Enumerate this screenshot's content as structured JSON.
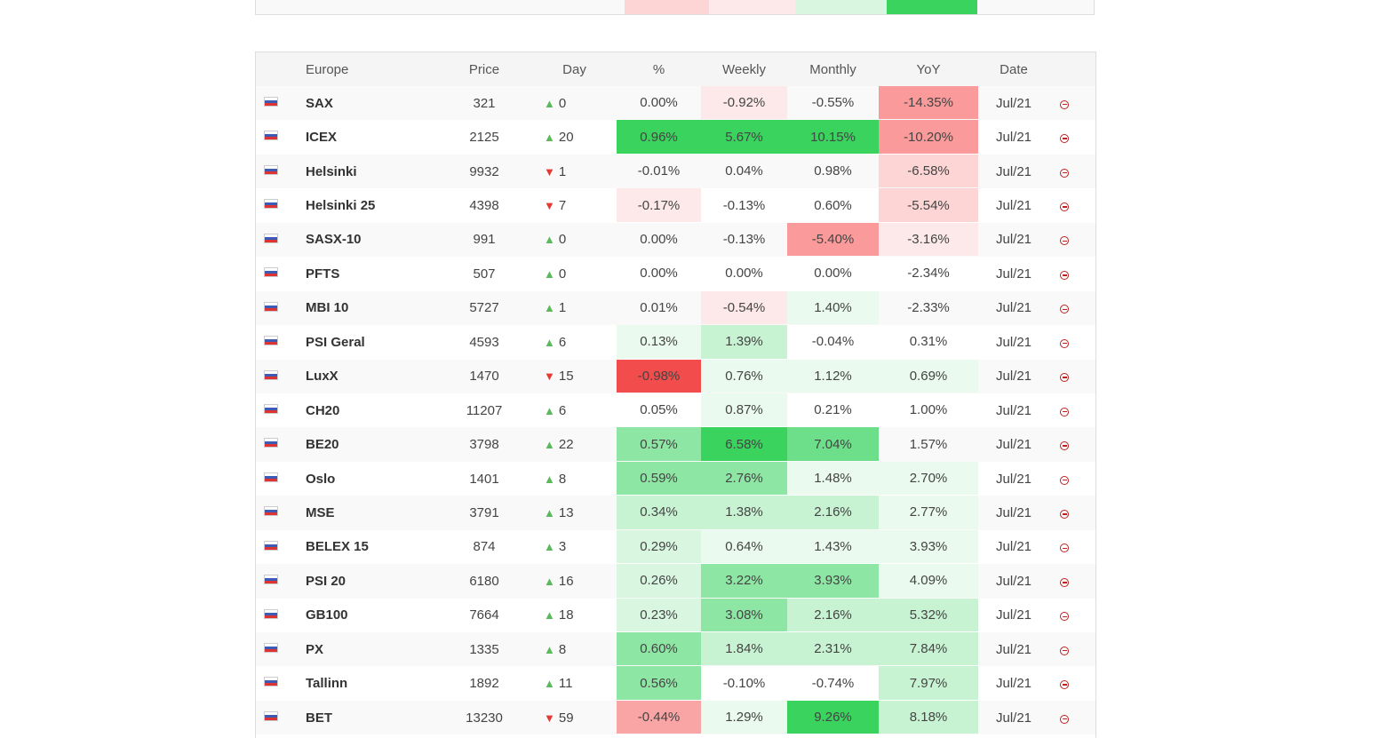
{
  "table": {
    "header": [
      "Europe",
      "Price",
      "Day",
      "%",
      "Weekly",
      "Monthly",
      "YoY",
      "Date"
    ],
    "rows": [
      {
        "name": "SAX",
        "price": "321",
        "arrow": "▲",
        "day": "0",
        "pct": "0.00%",
        "weekly": "-0.92%",
        "monthly": "-0.55%",
        "yoy": "-14.35%",
        "date": "Jul/21",
        "heat": [
          null,
          "#fde9e9",
          null,
          "#fb9a9a"
        ]
      },
      {
        "name": "ICEX",
        "price": "2125",
        "arrow": "▲",
        "day": "20",
        "pct": "0.96%",
        "weekly": "5.67%",
        "monthly": "10.15%",
        "yoy": "-10.20%",
        "date": "Jul/21",
        "heat": [
          "#3ad35e",
          "#3ad35e",
          "#3ad35e",
          "#fb9a9a"
        ]
      },
      {
        "name": "Helsinki",
        "price": "9932",
        "arrow": "▼",
        "day": "1",
        "pct": "-0.01%",
        "weekly": "0.04%",
        "monthly": "0.98%",
        "yoy": "-6.58%",
        "date": "Jul/21",
        "heat": [
          null,
          null,
          null,
          "#fdd5d5"
        ]
      },
      {
        "name": "Helsinki 25",
        "price": "4398",
        "arrow": "▼",
        "day": "7",
        "pct": "-0.17%",
        "weekly": "-0.13%",
        "monthly": "0.60%",
        "yoy": "-5.54%",
        "date": "Jul/21",
        "heat": [
          "#fde9e9",
          null,
          null,
          "#fdd5d5"
        ]
      },
      {
        "name": "SASX-10",
        "price": "991",
        "arrow": "▲",
        "day": "0",
        "pct": "0.00%",
        "weekly": "-0.13%",
        "monthly": "-5.40%",
        "yoy": "-3.16%",
        "date": "Jul/21",
        "heat": [
          null,
          null,
          "#fb9a9a",
          "#fde9e9"
        ]
      },
      {
        "name": "PFTS",
        "price": "507",
        "arrow": "▲",
        "day": "0",
        "pct": "0.00%",
        "weekly": "0.00%",
        "monthly": "0.00%",
        "yoy": "-2.34%",
        "date": "Jul/21",
        "heat": [
          null,
          null,
          null,
          null
        ]
      },
      {
        "name": "MBI 10",
        "price": "5727",
        "arrow": "▲",
        "day": "1",
        "pct": "0.01%",
        "weekly": "-0.54%",
        "monthly": "1.40%",
        "yoy": "-2.33%",
        "date": "Jul/21",
        "heat": [
          null,
          "#fde9e9",
          "#eafaee",
          null
        ]
      },
      {
        "name": "PSI Geral",
        "price": "4593",
        "arrow": "▲",
        "day": "6",
        "pct": "0.13%",
        "weekly": "1.39%",
        "monthly": "-0.04%",
        "yoy": "0.31%",
        "date": "Jul/21",
        "heat": [
          "#eafaee",
          "#c8f3d3",
          null,
          null
        ]
      },
      {
        "name": "LuxX",
        "price": "1470",
        "arrow": "▼",
        "day": "15",
        "pct": "-0.98%",
        "weekly": "0.76%",
        "monthly": "1.12%",
        "yoy": "0.69%",
        "date": "Jul/21",
        "heat": [
          "#f24c4c",
          "#eafaee",
          "#eafaee",
          "#eafaee"
        ]
      },
      {
        "name": "CH20",
        "price": "11207",
        "arrow": "▲",
        "day": "6",
        "pct": "0.05%",
        "weekly": "0.87%",
        "monthly": "0.21%",
        "yoy": "1.00%",
        "date": "Jul/21",
        "heat": [
          null,
          "#eafaee",
          null,
          null
        ]
      },
      {
        "name": "BE20",
        "price": "3798",
        "arrow": "▲",
        "day": "22",
        "pct": "0.57%",
        "weekly": "6.58%",
        "monthly": "7.04%",
        "yoy": "1.57%",
        "date": "Jul/21",
        "heat": [
          "#8ee6a4",
          "#3ad35e",
          "#6ddf8a",
          null
        ]
      },
      {
        "name": "Oslo",
        "price": "1401",
        "arrow": "▲",
        "day": "8",
        "pct": "0.59%",
        "weekly": "2.76%",
        "monthly": "1.48%",
        "yoy": "2.70%",
        "date": "Jul/21",
        "heat": [
          "#8ee6a4",
          "#8ee6a4",
          "#eafaee",
          "#eafaee"
        ]
      },
      {
        "name": "MSE",
        "price": "3791",
        "arrow": "▲",
        "day": "13",
        "pct": "0.34%",
        "weekly": "1.38%",
        "monthly": "2.16%",
        "yoy": "2.77%",
        "date": "Jul/21",
        "heat": [
          "#c8f3d3",
          "#c8f3d3",
          "#c8f3d3",
          "#eafaee"
        ]
      },
      {
        "name": "BELEX 15",
        "price": "874",
        "arrow": "▲",
        "day": "3",
        "pct": "0.29%",
        "weekly": "0.64%",
        "monthly": "1.43%",
        "yoy": "3.93%",
        "date": "Jul/21",
        "heat": [
          "#d8f6e0",
          "#eafaee",
          "#eafaee",
          "#eafaee"
        ]
      },
      {
        "name": "PSI 20",
        "price": "6180",
        "arrow": "▲",
        "day": "16",
        "pct": "0.26%",
        "weekly": "3.22%",
        "monthly": "3.93%",
        "yoy": "4.09%",
        "date": "Jul/21",
        "heat": [
          "#d8f6e0",
          "#8ee6a4",
          "#8ee6a4",
          "#eafaee"
        ]
      },
      {
        "name": "GB100",
        "price": "7664",
        "arrow": "▲",
        "day": "18",
        "pct": "0.23%",
        "weekly": "3.08%",
        "monthly": "2.16%",
        "yoy": "5.32%",
        "date": "Jul/21",
        "heat": [
          "#d8f6e0",
          "#8ee6a4",
          "#c8f3d3",
          "#c8f3d3"
        ]
      },
      {
        "name": "PX",
        "price": "1335",
        "arrow": "▲",
        "day": "8",
        "pct": "0.60%",
        "weekly": "1.84%",
        "monthly": "2.31%",
        "yoy": "7.84%",
        "date": "Jul/21",
        "heat": [
          "#8ee6a4",
          "#c8f3d3",
          "#c8f3d3",
          "#c8f3d3"
        ]
      },
      {
        "name": "Tallinn",
        "price": "1892",
        "arrow": "▲",
        "day": "11",
        "pct": "0.56%",
        "weekly": "-0.10%",
        "monthly": "-0.74%",
        "yoy": "7.97%",
        "date": "Jul/21",
        "heat": [
          "#8ee6a4",
          null,
          null,
          "#c8f3d3"
        ]
      },
      {
        "name": "BET",
        "price": "13230",
        "arrow": "▼",
        "day": "59",
        "pct": "-0.44%",
        "weekly": "1.29%",
        "monthly": "9.26%",
        "yoy": "8.18%",
        "date": "Jul/21",
        "heat": [
          "#f9a5a5",
          "#eafaee",
          "#3ad35e",
          "#c8f3d3"
        ]
      }
    ]
  }
}
